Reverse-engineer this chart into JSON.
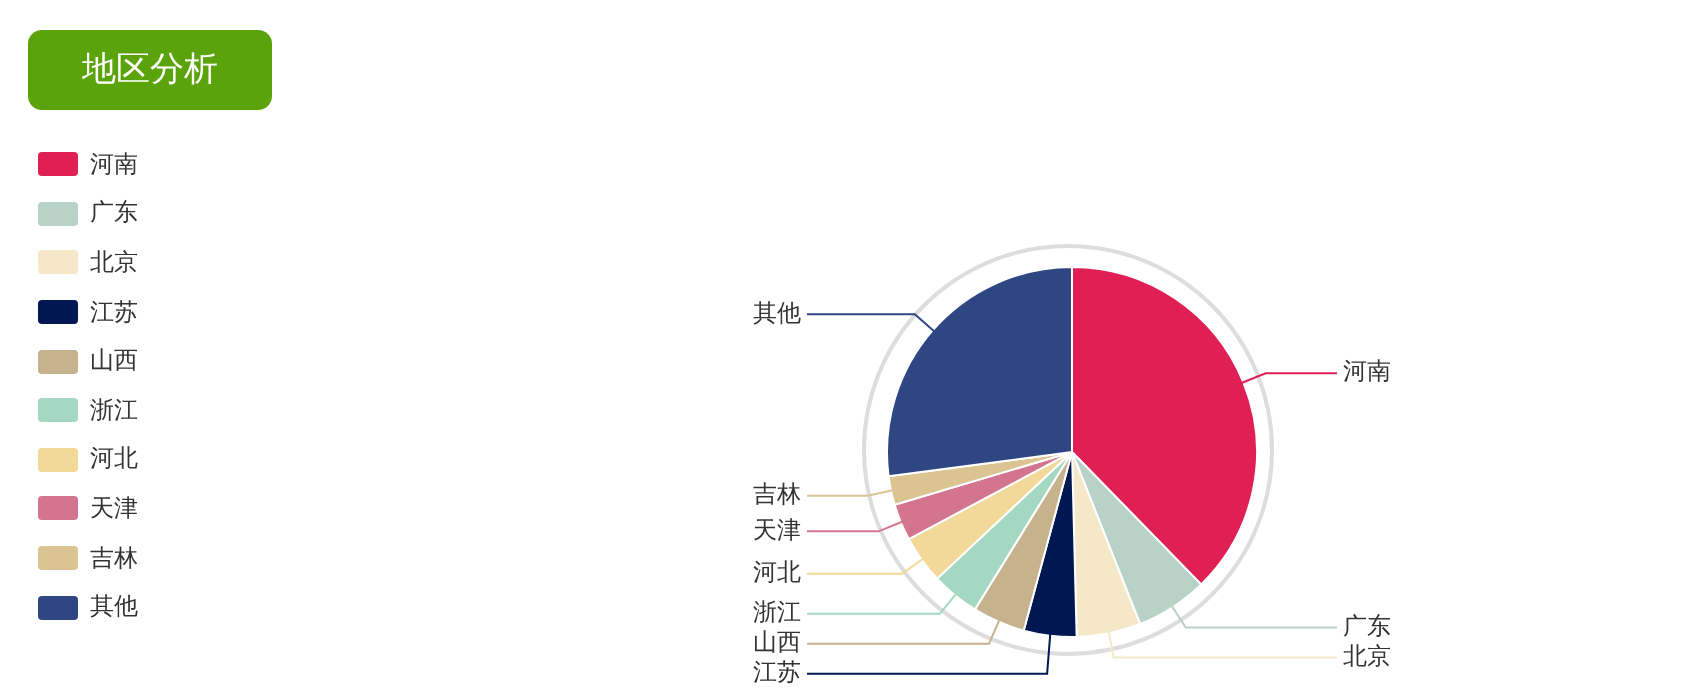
{
  "chart_data": {
    "type": "pie",
    "title": "地区分析",
    "legend": "left",
    "categories": [
      "河南",
      "广东",
      "北京",
      "江苏",
      "山西",
      "浙江",
      "河北",
      "天津",
      "吉林",
      "其他"
    ],
    "values": [
      37.7,
      6.3,
      5.6,
      4.6,
      4.6,
      4.2,
      4.2,
      3.2,
      2.5,
      27.1
    ],
    "colors": [
      "#e01f54",
      "#b8d2c7",
      "#f5e8c8",
      "#001852",
      "#c6b38e",
      "#a4d8c2",
      "#f3d999",
      "#d3758f",
      "#dcc392",
      "#2e4783"
    ]
  }
}
